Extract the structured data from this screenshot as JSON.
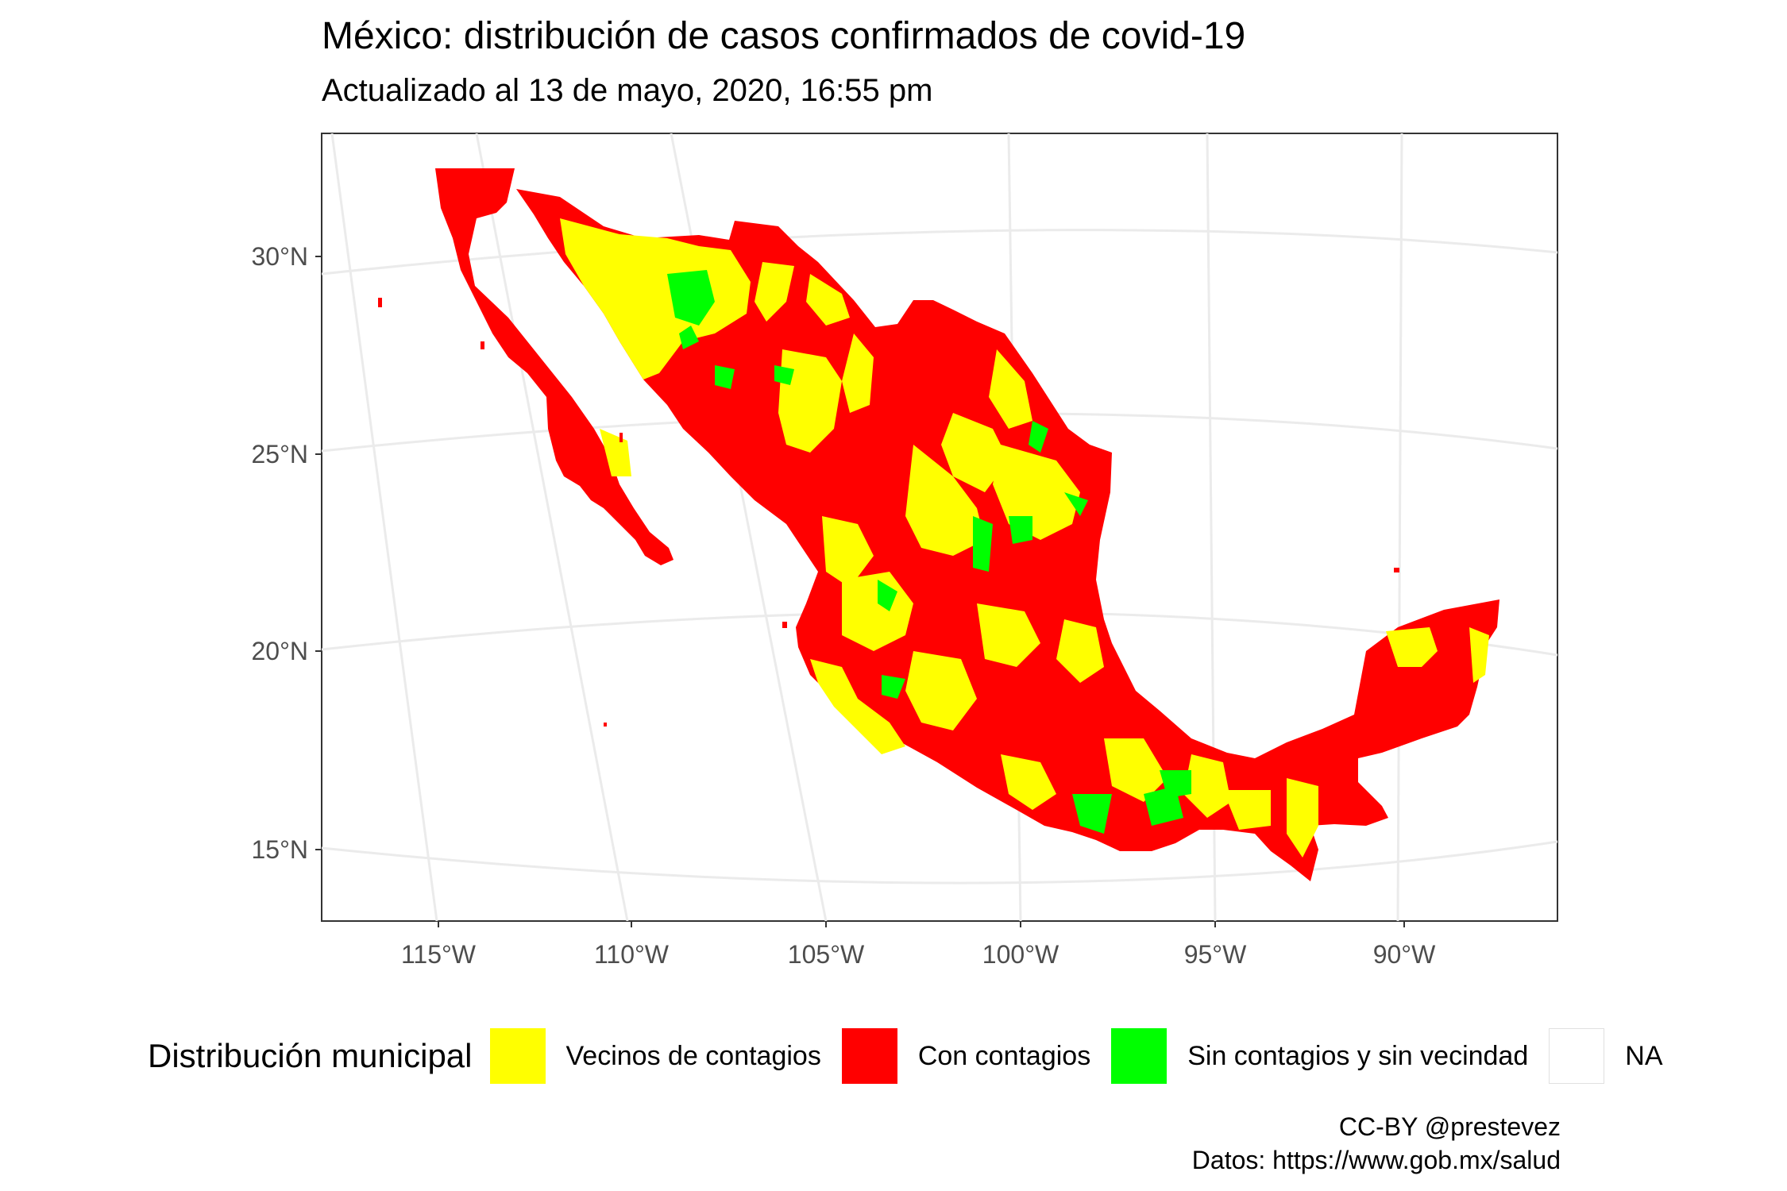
{
  "title": "México: distribución de casos confirmados de covid-19",
  "subtitle": "Actualizado al 13 de mayo, 2020, 16:55 pm",
  "axes": {
    "lon_ticks": [
      "115°W",
      "110°W",
      "105°W",
      "100°W",
      "95°W",
      "90°W"
    ],
    "lat_ticks": [
      "30°N",
      "25°N",
      "20°N",
      "15°N"
    ]
  },
  "legend": {
    "title": "Distribución municipal",
    "items": [
      {
        "label": "Vecinos de contagios",
        "color": "#ffff00"
      },
      {
        "label": "Con contagios",
        "color": "#ff0000"
      },
      {
        "label": "Sin contagios y sin vecindad",
        "color": "#00ff00"
      },
      {
        "label": "NA",
        "color": "#ffffff"
      }
    ]
  },
  "caption": {
    "line1": "CC-BY @prestevez",
    "line2": "Datos: https://www.gob.mx/salud"
  }
}
